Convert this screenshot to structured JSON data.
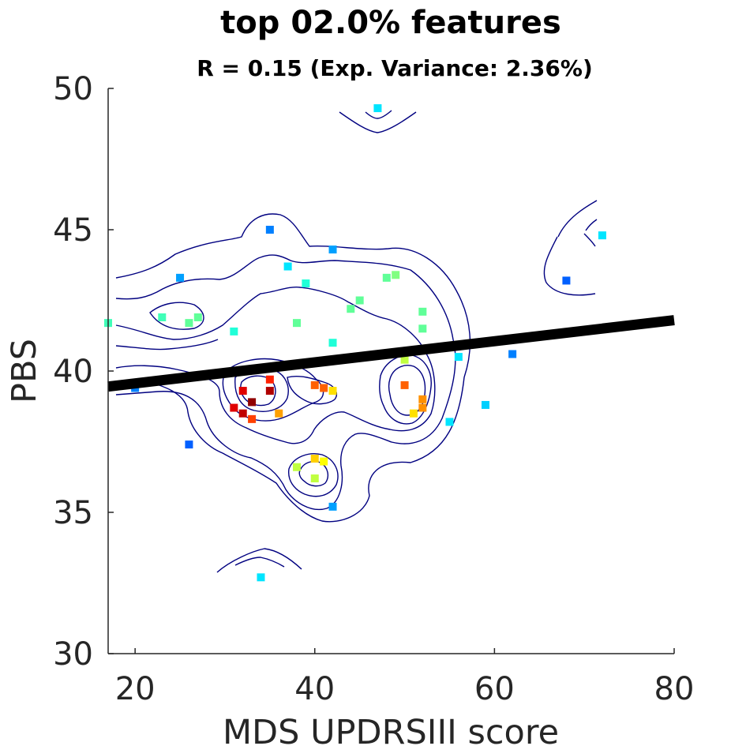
{
  "chart_data": {
    "type": "scatter",
    "title": "top 02.0% features",
    "subtitle": "R = 0.15 (Exp. Variance: 2.36%)",
    "xlabel": "MDS UPDRSIII score",
    "ylabel": "PBS",
    "xlim": [
      17,
      80
    ],
    "ylim": [
      30,
      50
    ],
    "xticks": [
      "20",
      "40",
      "60",
      "80"
    ],
    "yticks": [
      "30",
      "35",
      "40",
      "45",
      "50"
    ],
    "grid": false,
    "legend": "none",
    "colormap": "jet",
    "fit_line": {
      "x": [
        17,
        80
      ],
      "y": [
        39.45,
        41.8
      ],
      "color": "#000000"
    },
    "points": [
      {
        "x": 47.0,
        "y": 49.3,
        "color": "#00e5ff"
      },
      {
        "x": 35.0,
        "y": 45.0,
        "color": "#0080ff"
      },
      {
        "x": 72.0,
        "y": 44.8,
        "color": "#00e5ff"
      },
      {
        "x": 42.0,
        "y": 44.3,
        "color": "#00a0ff"
      },
      {
        "x": 37.0,
        "y": 43.7,
        "color": "#00e5ff"
      },
      {
        "x": 25.0,
        "y": 43.3,
        "color": "#00a0ff"
      },
      {
        "x": 48.0,
        "y": 43.3,
        "color": "#60ff98"
      },
      {
        "x": 49.0,
        "y": 43.4,
        "color": "#80ff80"
      },
      {
        "x": 68.0,
        "y": 43.2,
        "color": "#0060ff"
      },
      {
        "x": 39.0,
        "y": 43.1,
        "color": "#20ffd8"
      },
      {
        "x": 45.0,
        "y": 42.5,
        "color": "#60ff98"
      },
      {
        "x": 44.0,
        "y": 42.2,
        "color": "#60ff98"
      },
      {
        "x": 52.0,
        "y": 42.1,
        "color": "#60ff98"
      },
      {
        "x": 23.0,
        "y": 41.9,
        "color": "#40ffb8"
      },
      {
        "x": 27.0,
        "y": 41.9,
        "color": "#60ff98"
      },
      {
        "x": 26.0,
        "y": 41.7,
        "color": "#60ff98"
      },
      {
        "x": 38.0,
        "y": 41.7,
        "color": "#60ff98"
      },
      {
        "x": 17.0,
        "y": 41.7,
        "color": "#40ffb8"
      },
      {
        "x": 52.0,
        "y": 41.5,
        "color": "#60ff98"
      },
      {
        "x": 31.0,
        "y": 41.4,
        "color": "#20ffd8"
      },
      {
        "x": 42.0,
        "y": 41.0,
        "color": "#20ffd8"
      },
      {
        "x": 62.0,
        "y": 40.6,
        "color": "#0080ff"
      },
      {
        "x": 56.0,
        "y": 40.5,
        "color": "#00e5ff"
      },
      {
        "x": 50.0,
        "y": 40.4,
        "color": "#c0ff40"
      },
      {
        "x": 35.0,
        "y": 39.7,
        "color": "#ff2000"
      },
      {
        "x": 50.0,
        "y": 39.5,
        "color": "#ff6000"
      },
      {
        "x": 40.0,
        "y": 39.5,
        "color": "#ff6000"
      },
      {
        "x": 41.0,
        "y": 39.4,
        "color": "#ff6000"
      },
      {
        "x": 20.0,
        "y": 39.4,
        "color": "#0080ff"
      },
      {
        "x": 32.0,
        "y": 39.3,
        "color": "#e00000"
      },
      {
        "x": 35.0,
        "y": 39.3,
        "color": "#b00000"
      },
      {
        "x": 42.0,
        "y": 39.3,
        "color": "#ffe000"
      },
      {
        "x": 52.0,
        "y": 39.0,
        "color": "#ff9000"
      },
      {
        "x": 33.0,
        "y": 38.9,
        "color": "#900000"
      },
      {
        "x": 59.0,
        "y": 38.8,
        "color": "#00d0ff"
      },
      {
        "x": 31.0,
        "y": 38.7,
        "color": "#e00000"
      },
      {
        "x": 52.0,
        "y": 38.7,
        "color": "#ff9000"
      },
      {
        "x": 32.0,
        "y": 38.5,
        "color": "#c00000"
      },
      {
        "x": 36.0,
        "y": 38.5,
        "color": "#ffa000"
      },
      {
        "x": 51.0,
        "y": 38.5,
        "color": "#ffe000"
      },
      {
        "x": 33.0,
        "y": 38.3,
        "color": "#ff4000"
      },
      {
        "x": 55.0,
        "y": 38.2,
        "color": "#00e5ff"
      },
      {
        "x": 26.0,
        "y": 37.4,
        "color": "#0060ff"
      },
      {
        "x": 40.0,
        "y": 36.9,
        "color": "#ffd000"
      },
      {
        "x": 41.0,
        "y": 36.8,
        "color": "#ffff00"
      },
      {
        "x": 38.0,
        "y": 36.6,
        "color": "#c0ff40"
      },
      {
        "x": 40.0,
        "y": 36.2,
        "color": "#c0ff40"
      },
      {
        "x": 42.0,
        "y": 35.2,
        "color": "#00a0ff"
      },
      {
        "x": 34.0,
        "y": 32.7,
        "color": "#00e5ff"
      }
    ]
  }
}
